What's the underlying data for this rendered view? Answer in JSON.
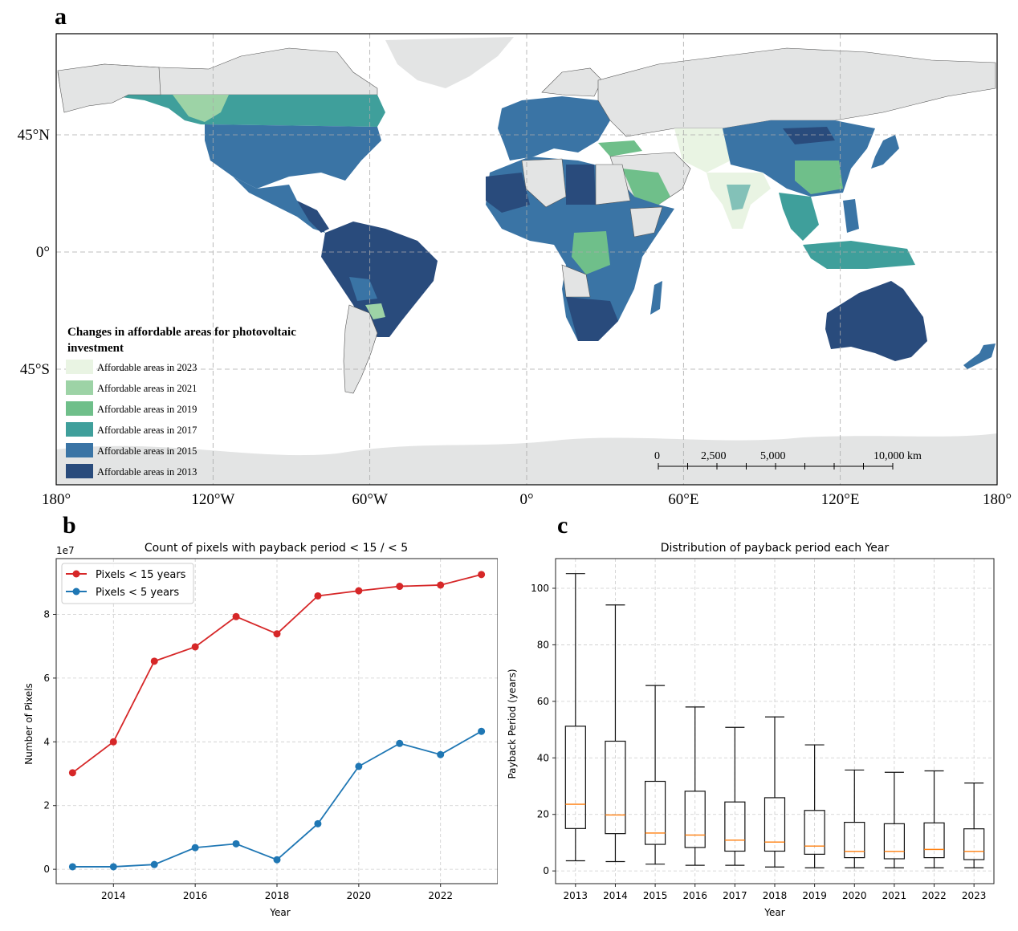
{
  "panels": {
    "a": {
      "letter": "a",
      "map": {
        "lon_ticks": [
          "180°",
          "120°W",
          "60°W",
          "0°",
          "60°E",
          "120°E",
          "180°"
        ],
        "lon_values": [
          -180,
          -120,
          -60,
          0,
          60,
          120,
          180
        ],
        "lat_ticks": [
          "45°N",
          "0°",
          "45°S"
        ],
        "lat_values": [
          45,
          0,
          -45
        ],
        "lat_range": [
          -89,
          84
        ],
        "land_color": "#e3e4e4",
        "legend": {
          "title_line1": "Changes in affordable areas for photovoltaic",
          "title_line2": "investment",
          "items": [
            {
              "label": "Affordable areas in 2023",
              "color": "#e9f4e3"
            },
            {
              "label": "Affordable areas in 2021",
              "color": "#9dd3a6"
            },
            {
              "label": "Affordable areas in 2019",
              "color": "#6fbf8a"
            },
            {
              "label": "Affordable areas in 2017",
              "color": "#3f9f9b"
            },
            {
              "label": "Affordable areas in 2015",
              "color": "#3a74a5"
            },
            {
              "label": "Affordable areas in 2013",
              "color": "#294b7c"
            }
          ]
        },
        "scale_bar": {
          "labels": [
            "0",
            "2,500",
            "5,000",
            "10,000 km"
          ],
          "values_km": [
            0,
            2500,
            5000,
            10000
          ]
        }
      }
    },
    "b": {
      "letter": "b"
    },
    "c": {
      "letter": "c"
    }
  },
  "chart_data": [
    {
      "type": "line",
      "title": "Count of pixels with payback period < 15 / < 5",
      "xlabel": "Year",
      "ylabel": "Number of Pixels",
      "y_multiplier_label": "1e7",
      "x": [
        2013,
        2014,
        2015,
        2016,
        2017,
        2018,
        2019,
        2020,
        2021,
        2022,
        2023
      ],
      "xticks": [
        2014,
        2016,
        2018,
        2020,
        2022
      ],
      "yticks": [
        0,
        2,
        4,
        6,
        8
      ],
      "xlim": [
        2012.6,
        2023.4
      ],
      "ylim": [
        -0.45,
        9.75
      ],
      "grid": true,
      "legend_position": "top-left",
      "series": [
        {
          "name": "Pixels < 15 years",
          "color": "#d62728",
          "values": [
            3.03,
            4.0,
            6.53,
            6.98,
            7.93,
            7.39,
            8.58,
            8.74,
            8.88,
            8.92,
            9.25
          ]
        },
        {
          "name": "Pixels < 5 years",
          "color": "#1f77b4",
          "values": [
            0.08,
            0.08,
            0.15,
            0.68,
            0.8,
            0.3,
            1.43,
            3.23,
            3.95,
            3.6,
            4.33
          ]
        }
      ]
    },
    {
      "type": "box",
      "title": "Distribution of payback period each Year",
      "xlabel": "Year",
      "ylabel": "Payback Period (years)",
      "categories": [
        "2013",
        "2014",
        "2015",
        "2016",
        "2017",
        "2018",
        "2019",
        "2020",
        "2021",
        "2022",
        "2023"
      ],
      "yticks": [
        0,
        20,
        40,
        60,
        80,
        100
      ],
      "ylim": [
        -4.5,
        110.5
      ],
      "grid": true,
      "median_color": "#ff7f0e",
      "boxes": [
        {
          "min": 3.6,
          "q1": 15.0,
          "median": 23.6,
          "q3": 51.2,
          "max": 105.2
        },
        {
          "min": 3.3,
          "q1": 13.2,
          "median": 19.8,
          "q3": 45.9,
          "max": 94.1
        },
        {
          "min": 2.4,
          "q1": 9.4,
          "median": 13.4,
          "q3": 31.7,
          "max": 65.6
        },
        {
          "min": 2.0,
          "q1": 8.3,
          "median": 12.7,
          "q3": 28.2,
          "max": 58.0
        },
        {
          "min": 2.0,
          "q1": 7.0,
          "median": 10.9,
          "q3": 24.4,
          "max": 50.8
        },
        {
          "min": 1.4,
          "q1": 7.0,
          "median": 10.2,
          "q3": 25.9,
          "max": 54.5
        },
        {
          "min": 1.1,
          "q1": 5.9,
          "median": 8.8,
          "q3": 21.4,
          "max": 44.6
        },
        {
          "min": 1.1,
          "q1": 4.7,
          "median": 6.9,
          "q3": 17.2,
          "max": 35.7
        },
        {
          "min": 1.1,
          "q1": 4.3,
          "median": 6.9,
          "q3": 16.7,
          "max": 34.9
        },
        {
          "min": 1.1,
          "q1": 4.7,
          "median": 7.6,
          "q3": 17.0,
          "max": 35.4
        },
        {
          "min": 1.1,
          "q1": 4.0,
          "median": 6.9,
          "q3": 14.9,
          "max": 31.1
        }
      ]
    }
  ]
}
